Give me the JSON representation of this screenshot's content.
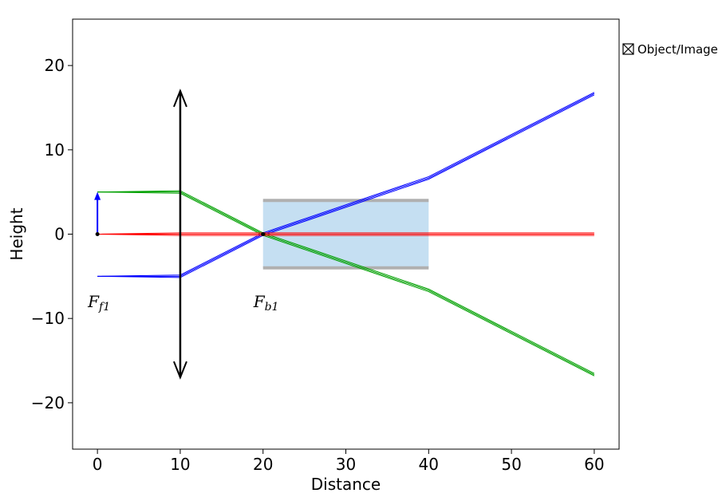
{
  "chart_data": {
    "type": "line",
    "xlabel": "Distance",
    "ylabel": "Height",
    "xlim": [
      -3,
      63
    ],
    "ylim": [
      -25.5,
      25.5
    ],
    "xticks": [
      0,
      10,
      20,
      30,
      40,
      50,
      60
    ],
    "yticks": [
      -20,
      -10,
      0,
      10,
      20
    ],
    "ytick_labels": [
      "−20",
      "−10",
      "0",
      "10",
      "20"
    ],
    "grid": false,
    "legend": {
      "label": "Object/Image",
      "placement": "outside-right-top"
    },
    "lens": {
      "x": 10,
      "half_height": 17,
      "color": "#000000"
    },
    "object_arrow": {
      "x": 0,
      "y_from": 0,
      "y_to": 5,
      "color": "#0000ff"
    },
    "focal_points": [
      {
        "x": 0,
        "y": 0,
        "label_main": "F",
        "label_sub": "f1",
        "label_y": -8
      },
      {
        "x": 20,
        "y": 0,
        "label_main": "F",
        "label_sub": "b1",
        "label_y": -8
      }
    ],
    "aperture": {
      "x_start": 20,
      "x_end": 40,
      "y_min": -4,
      "y_max": 4,
      "fill_color": "#c5dff2",
      "edge_color": "#b0b0b0"
    },
    "series": [
      {
        "color": "#0000ff",
        "offsets": [
          -0.15,
          0,
          0.15
        ],
        "x": [
          0,
          10,
          20,
          40,
          60
        ],
        "y": [
          -5,
          -5,
          0,
          6.667,
          16.667
        ]
      },
      {
        "color": "#00a000",
        "offsets": [
          -0.15,
          0,
          0.15
        ],
        "x": [
          0,
          10,
          20,
          40,
          60
        ],
        "y": [
          5,
          5,
          0,
          -6.667,
          -16.667
        ]
      },
      {
        "color": "#ff0000",
        "offsets": [
          -0.15,
          0,
          0.15
        ],
        "x": [
          0,
          10,
          20,
          40,
          60
        ],
        "y": [
          0,
          0,
          0,
          0,
          0
        ]
      }
    ]
  }
}
